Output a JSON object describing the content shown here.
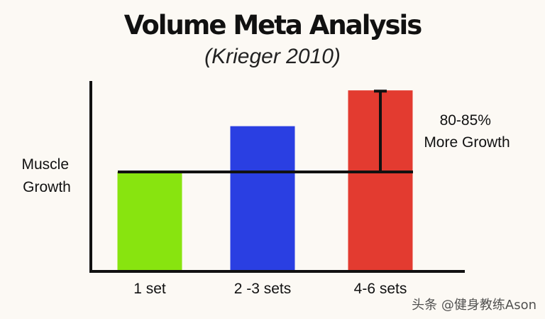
{
  "chart_data": {
    "type": "bar",
    "title": "Volume Meta Analysis",
    "subtitle": "(Krieger 2010)",
    "ylabel_lines": [
      "Muscle",
      "Growth"
    ],
    "xlabel": "",
    "categories": [
      "1 set",
      "2 -3 sets",
      "4-6 sets"
    ],
    "values": [
      100,
      146,
      182
    ],
    "baseline_value": 100,
    "ylim": [
      0,
      200
    ],
    "colors": [
      "#88e40f",
      "#2a3fe2",
      "#e33b30"
    ],
    "annotation_lines": [
      "80-85%",
      "More Growth"
    ],
    "grid": false,
    "legend": "none"
  },
  "watermark": "头条 @健身教练Ason"
}
